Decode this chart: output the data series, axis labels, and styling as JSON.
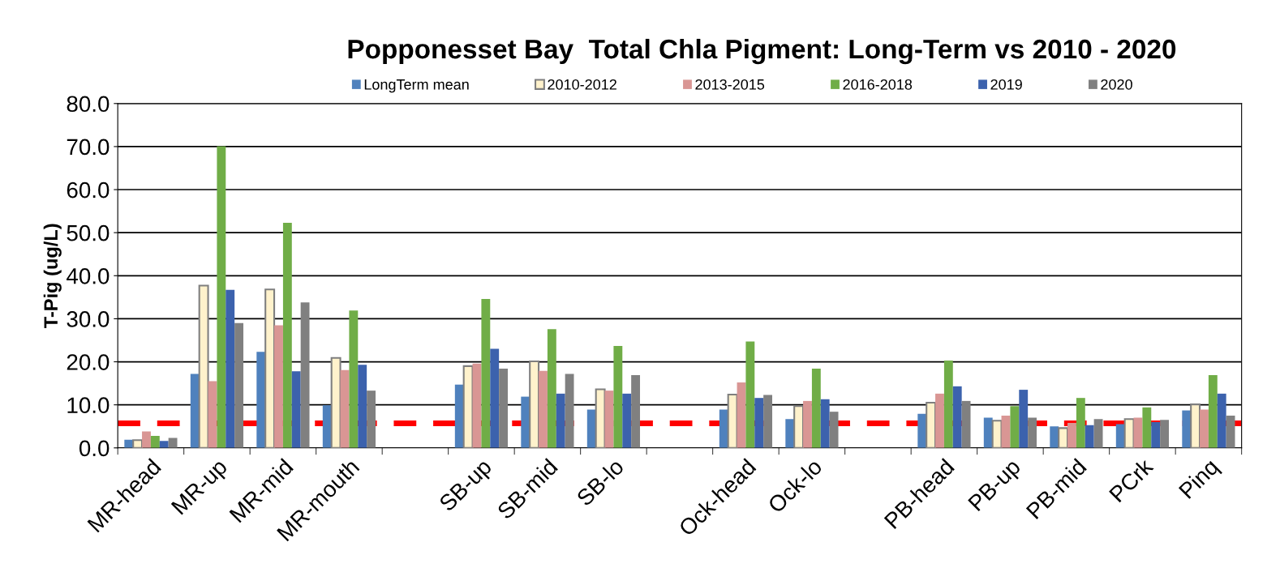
{
  "chart_data": {
    "type": "bar",
    "title": "Popponesset Bay  Total Chla Pigment: Long-Term vs 2010 - 2020",
    "ylabel": "T-Pig (ug/L)",
    "categories": [
      "MR-head",
      "MR-up",
      "MR-mid",
      "MR-mouth",
      null,
      "SB-up",
      "SB-mid",
      "SB-lo",
      null,
      "Ock-head",
      "Ock-lo",
      null,
      "PB-head",
      "PB-up",
      "PB-mid",
      "PCrk",
      "Pinq"
    ],
    "series": [
      {
        "name": "LongTerm mean",
        "color": "#4f81bd",
        "values": [
          1.9,
          17.2,
          22.3,
          9.9,
          null,
          14.7,
          11.9,
          8.9,
          null,
          8.9,
          6.7,
          null,
          7.9,
          7.0,
          5.0,
          5.5,
          8.7
        ]
      },
      {
        "name": "2010-2012",
        "color": "#fff2cc",
        "values": [
          1.8,
          37.7,
          36.8,
          20.9,
          null,
          19.0,
          20.1,
          13.6,
          null,
          12.4,
          9.7,
          null,
          10.5,
          6.3,
          4.6,
          6.7,
          10.1
        ]
      },
      {
        "name": "2013-2015",
        "color": "#d99694",
        "values": [
          3.8,
          15.5,
          28.5,
          18.1,
          null,
          19.6,
          17.9,
          13.3,
          null,
          15.2,
          10.9,
          null,
          12.6,
          7.5,
          5.8,
          7.0,
          8.9
        ]
      },
      {
        "name": "2016-2018",
        "color": "#70ad47",
        "values": [
          2.8,
          70.1,
          52.3,
          31.9,
          null,
          34.6,
          27.6,
          23.7,
          null,
          24.7,
          18.4,
          null,
          20.3,
          9.7,
          11.6,
          9.4,
          16.9
        ]
      },
      {
        "name": "2019",
        "color": "#3c62ad",
        "values": [
          1.6,
          36.7,
          17.8,
          19.3,
          null,
          23.0,
          12.6,
          12.6,
          null,
          11.6,
          11.3,
          null,
          14.3,
          13.5,
          5.3,
          6.0,
          12.6
        ]
      },
      {
        "name": "2020",
        "color": "#808080",
        "values": [
          2.3,
          29.0,
          33.8,
          13.3,
          null,
          18.4,
          17.2,
          16.9,
          null,
          12.3,
          8.4,
          null,
          10.9,
          7.0,
          6.7,
          6.5,
          7.5
        ]
      }
    ],
    "ylim": [
      0,
      80
    ],
    "yticks": [
      {
        "value": 0,
        "label": "0.0"
      },
      {
        "value": 10,
        "label": "10.0"
      },
      {
        "value": 20,
        "label": "20.0"
      },
      {
        "value": 30,
        "label": "30.0"
      },
      {
        "value": 40,
        "label": "40.0"
      },
      {
        "value": 50,
        "label": "50.0"
      },
      {
        "value": 60,
        "label": "60.0"
      },
      {
        "value": 70,
        "label": "70.0"
      },
      {
        "value": 80,
        "label": "80.0"
      }
    ],
    "grid": "y",
    "legend": "top",
    "ref_lines": [
      {
        "axis": "y",
        "value": 5.7,
        "label": null,
        "color": "#ff0000",
        "line_style": "dashed"
      }
    ]
  }
}
